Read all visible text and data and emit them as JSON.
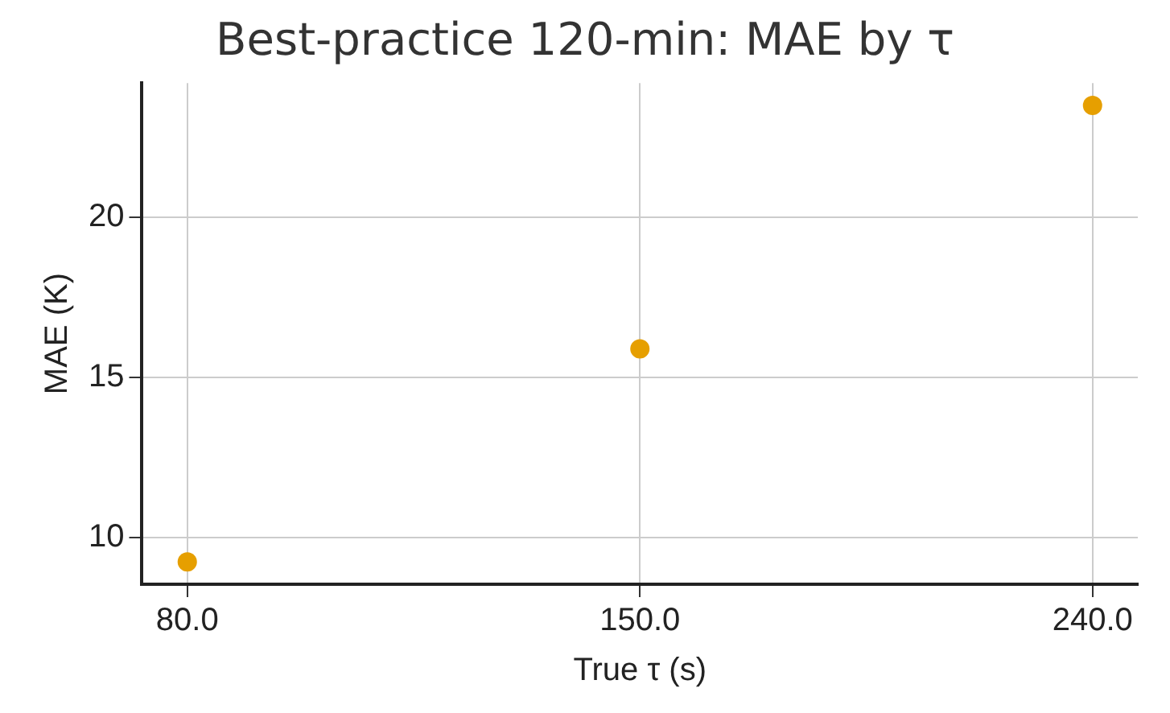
{
  "chart_data": {
    "type": "scatter",
    "title": "Best-practice 120-min: MAE by τ",
    "xlabel": "True τ (s)",
    "ylabel": "MAE (K)",
    "categories": [
      "80.0",
      "150.0",
      "240.0"
    ],
    "series": [
      {
        "color": "#e69f00",
        "values": [
          9.25,
          15.9,
          23.5
        ]
      }
    ],
    "ylim": [
      8.55,
      24.2
    ],
    "yticks": [
      10,
      15,
      20
    ],
    "grid": true,
    "marker": "circle",
    "legend": false
  }
}
